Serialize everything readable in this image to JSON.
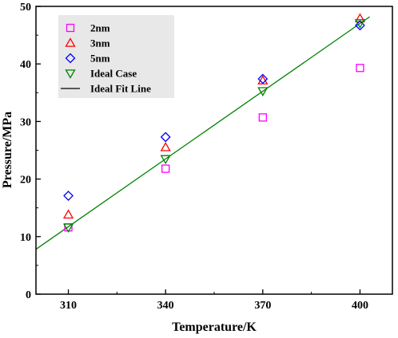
{
  "chart_data": {
    "type": "scatter",
    "xlabel": "Temperature/K",
    "ylabel": "Pressure/MPa",
    "xlim": [
      300,
      410
    ],
    "ylim": [
      0,
      50
    ],
    "xticks": [
      310,
      340,
      370,
      400
    ],
    "yticks": [
      0,
      10,
      20,
      30,
      40,
      50
    ],
    "grid": false,
    "legend_position": "top-left",
    "x": [
      310,
      340,
      370,
      400
    ],
    "series": [
      {
        "name": "2nm",
        "marker": "square",
        "color": "#ff00ff",
        "values": [
          11.6,
          21.8,
          30.7,
          39.3
        ]
      },
      {
        "name": "3nm",
        "marker": "triangle-up",
        "color": "#ff0000",
        "values": [
          13.8,
          25.5,
          37.1,
          47.9
        ]
      },
      {
        "name": "5nm",
        "marker": "diamond",
        "color": "#0000ff",
        "values": [
          17.1,
          27.3,
          37.4,
          46.7
        ]
      },
      {
        "name": "Ideal Case",
        "marker": "triangle-down",
        "color": "#008000",
        "values": [
          11.6,
          23.5,
          35.3,
          47.1
        ]
      }
    ],
    "fit_line": {
      "name": "Ideal Fit Line",
      "color": "#008000",
      "x": [
        300,
        403
      ],
      "values": [
        7.8,
        48.2
      ]
    }
  }
}
